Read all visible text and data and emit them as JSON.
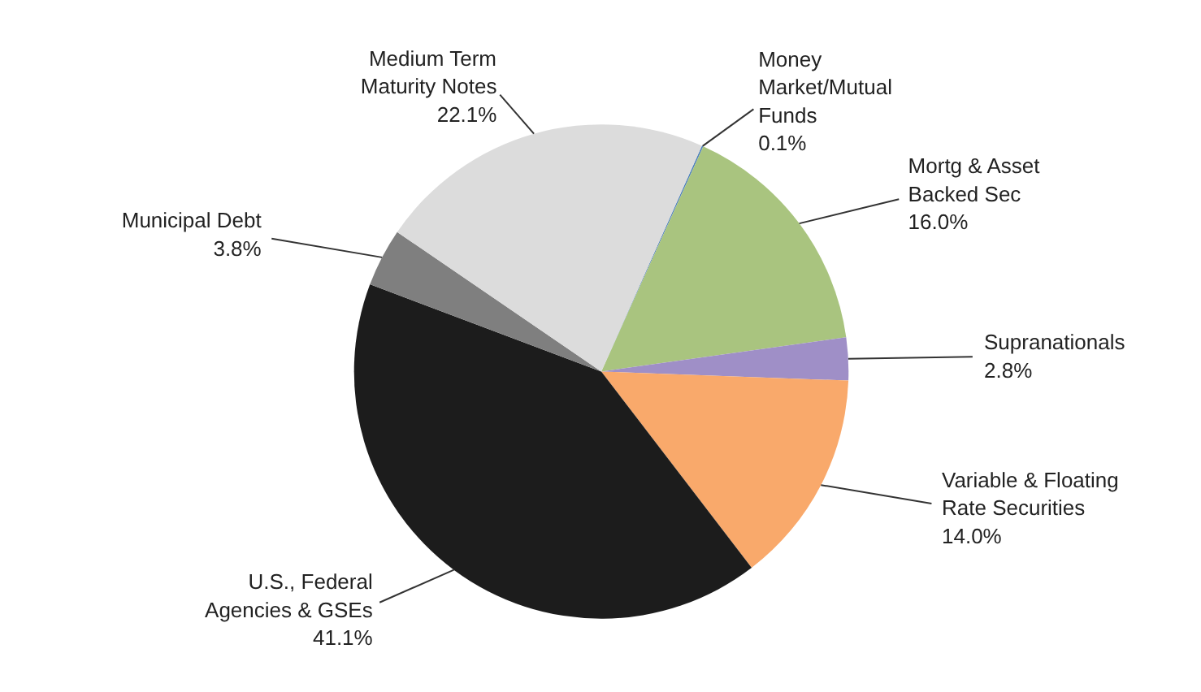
{
  "chart_data": {
    "type": "pie",
    "categories": [
      "Money\nMarket/Mutual\nFunds",
      "Mortg & Asset\nBacked Sec",
      "Supranationals",
      "Variable & Floating\nRate Securities",
      "U.S., Federal\nAgencies & GSEs",
      "Municipal Debt",
      "Medium Term\nMaturity Notes"
    ],
    "values": [
      0.1,
      16.0,
      2.8,
      14.0,
      41.1,
      3.8,
      22.1
    ],
    "value_labels": [
      "0.1%",
      "16.0%",
      "2.8%",
      "14.0%",
      "41.1%",
      "3.8%",
      "22.1%"
    ],
    "colors": [
      "#4f81bd",
      "#a9c47f",
      "#9f8fc7",
      "#f9a96b",
      "#1c1c1c",
      "#7f7f7f",
      "#dcdcdc"
    ]
  }
}
